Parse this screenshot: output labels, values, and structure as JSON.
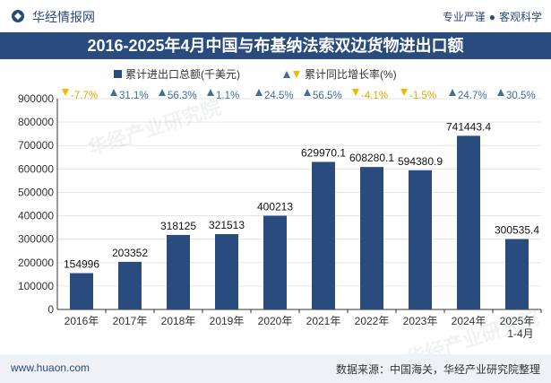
{
  "header": {
    "brand": "华经情报网",
    "slogan_left": "专业严谨",
    "slogan_right": "客观科学"
  },
  "title": "2016-2025年4月中国与布基纳法索双边货物进出口额",
  "legend": {
    "bar_label": "累计进出口总额(千美元)",
    "growth_label": "累计同比增长率(%)"
  },
  "colors": {
    "bar": "#2a4b7e",
    "up": "#3f6f9b",
    "down": "#f5b800",
    "grid": "#e6e6e6",
    "axis": "#333333"
  },
  "chart_data": {
    "type": "bar",
    "categories": [
      "2016年",
      "2017年",
      "2018年",
      "2019年",
      "2020年",
      "2021年",
      "2022年",
      "2023年",
      "2024年",
      "2025年\n1-4月"
    ],
    "series": [
      {
        "name": "累计进出口总额(千美元)",
        "values": [
          154996,
          203352,
          318125,
          321513,
          400213,
          629970.1,
          608280.1,
          594380.9,
          741443.4,
          300535.4
        ]
      },
      {
        "name": "累计同比增长率(%)",
        "values": [
          -7.7,
          31.1,
          56.3,
          1.1,
          24.5,
          56.5,
          -4.1,
          -1.5,
          24.7,
          30.5
        ]
      }
    ],
    "value_labels": [
      "154996",
      "203352",
      "318125",
      "321513",
      "400213",
      "629970.1",
      "608280.1",
      "594380.9",
      "741443.4",
      "300535.4"
    ],
    "growth_labels": [
      "-7.7%",
      "31.1%",
      "56.3%",
      "1.1%",
      "24.5%",
      "56.5%",
      "-4.1%",
      "-1.5%",
      "24.7%",
      "30.5%"
    ],
    "ylim": [
      0,
      900000
    ],
    "yticks": [
      0,
      100000,
      200000,
      300000,
      400000,
      500000,
      600000,
      700000,
      800000,
      900000
    ],
    "grid": true,
    "legend_position": "top-center"
  },
  "footer": {
    "website": "www.huaon.com",
    "source": "数据来源：中国海关，华经产业研究院整理"
  }
}
